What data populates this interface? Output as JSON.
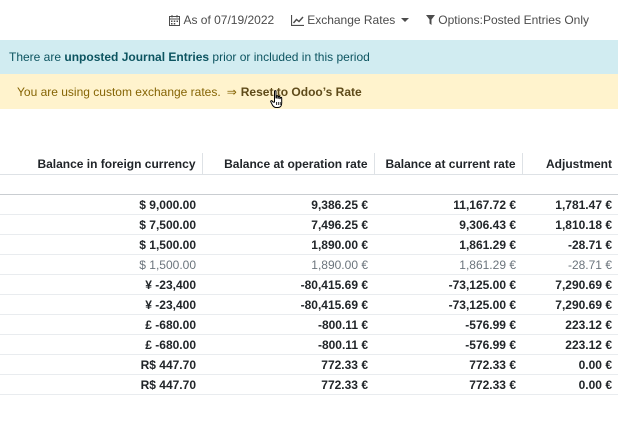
{
  "toolbar": {
    "date_filter": "As of 07/19/2022",
    "exchange_rates": "Exchange Rates",
    "options_filter": "Options:Posted Entries Only"
  },
  "alerts": {
    "info_prefix": "There are",
    "info_bold": "unposted Journal Entries",
    "info_suffix": "prior or included in this period",
    "warning_text": "You are using custom exchange rates.",
    "warning_arrow": "⇒",
    "warning_link": "Reset to Odoo’s Rate"
  },
  "table": {
    "headers": [
      "Balance in foreign currency",
      "Balance at operation rate",
      "Balance at current rate",
      "Adjustment"
    ],
    "rows": [
      {
        "style": "bold",
        "cells": [
          "$ 9,000.00",
          "9,386.25 €",
          "11,167.72 €",
          "1,781.47 €"
        ]
      },
      {
        "style": "bold",
        "cells": [
          "$ 7,500.00",
          "7,496.25 €",
          "9,306.43 €",
          "1,810.18 €"
        ]
      },
      {
        "style": "bold",
        "cells": [
          "$ 1,500.00",
          "1,890.00 €",
          "1,861.29 €",
          "-28.71 €"
        ]
      },
      {
        "style": "line",
        "cells": [
          "$ 1,500.00",
          "1,890.00 €",
          "1,861.29 €",
          "-28.71 €"
        ]
      },
      {
        "style": "bold",
        "cells": [
          "¥ -23,400",
          "-80,415.69 €",
          "-73,125.00 €",
          "7,290.69 €"
        ]
      },
      {
        "style": "bold",
        "cells": [
          "¥ -23,400",
          "-80,415.69 €",
          "-73,125.00 €",
          "7,290.69 €"
        ]
      },
      {
        "style": "bold",
        "cells": [
          "£ -680.00",
          "-800.11 €",
          "-576.99 €",
          "223.12 €"
        ]
      },
      {
        "style": "bold",
        "cells": [
          "£ -680.00",
          "-800.11 €",
          "-576.99 €",
          "223.12 €"
        ]
      },
      {
        "style": "bold",
        "cells": [
          "R$ 447.70",
          "772.33 €",
          "772.33 €",
          "0.00 €"
        ]
      },
      {
        "style": "bold",
        "cells": [
          "R$ 447.70",
          "772.33 €",
          "772.33 €",
          "0.00 €"
        ]
      }
    ]
  }
}
